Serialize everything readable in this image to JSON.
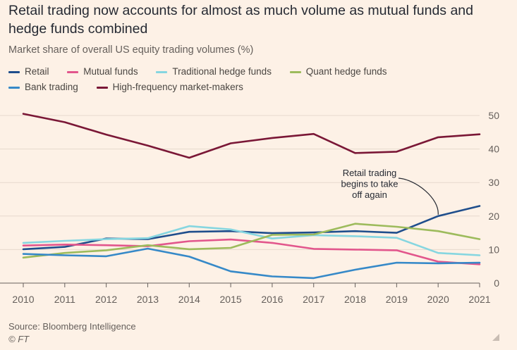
{
  "header": {
    "title": "Retail trading now accounts for almost as much volume as mutual funds and hedge funds combined",
    "subtitle": "Market share of overall US equity trading volumes (%)"
  },
  "footer": {
    "source": "Source: Bloomberg Intelligence",
    "copyright": "© FT"
  },
  "chart_data": {
    "type": "line",
    "x": [
      2010,
      2011,
      2012,
      2013,
      2014,
      2015,
      2016,
      2017,
      2018,
      2019,
      2020,
      2021
    ],
    "ylim": [
      0,
      55
    ],
    "yticks": [
      0,
      10,
      20,
      30,
      40,
      50
    ],
    "y_axis_position": "right",
    "grid": true,
    "legend_placement": "top",
    "series": [
      {
        "name": "Retail",
        "color": "#1f4e8c",
        "values": [
          10.1,
          10.8,
          13.3,
          13.1,
          15.3,
          15.5,
          14.9,
          15.1,
          15.5,
          15.0,
          20.0,
          23.0
        ]
      },
      {
        "name": "Mutual funds",
        "color": "#e2568c",
        "values": [
          11.2,
          11.5,
          11.3,
          11.0,
          12.5,
          13.0,
          12.0,
          10.2,
          10.0,
          9.8,
          6.4,
          5.6
        ]
      },
      {
        "name": "Traditional hedge funds",
        "color": "#86d6e0",
        "values": [
          12.0,
          12.6,
          13.1,
          13.4,
          17.0,
          16.0,
          13.3,
          14.3,
          14.0,
          13.5,
          9.0,
          8.3
        ]
      },
      {
        "name": "Quant hedge funds",
        "color": "#9dbb5c",
        "values": [
          7.6,
          9.0,
          9.8,
          11.3,
          10.1,
          10.5,
          14.4,
          14.5,
          17.7,
          16.8,
          15.5,
          13.1
        ]
      },
      {
        "name": "Bank trading",
        "color": "#3689c8",
        "values": [
          8.7,
          8.3,
          8.0,
          10.3,
          7.9,
          3.5,
          2.0,
          1.5,
          4.0,
          6.1,
          5.9,
          6.1
        ]
      },
      {
        "name": "High-frequency market-makers",
        "color": "#7a1736",
        "values": [
          50.5,
          48.0,
          44.3,
          41.0,
          37.4,
          41.7,
          43.3,
          44.5,
          38.8,
          39.2,
          43.5,
          44.4
        ]
      }
    ],
    "annotations": [
      {
        "text_lines": [
          "Retail trading",
          "begins to take",
          "off again"
        ],
        "x": 2020,
        "series": "Retail"
      }
    ]
  }
}
